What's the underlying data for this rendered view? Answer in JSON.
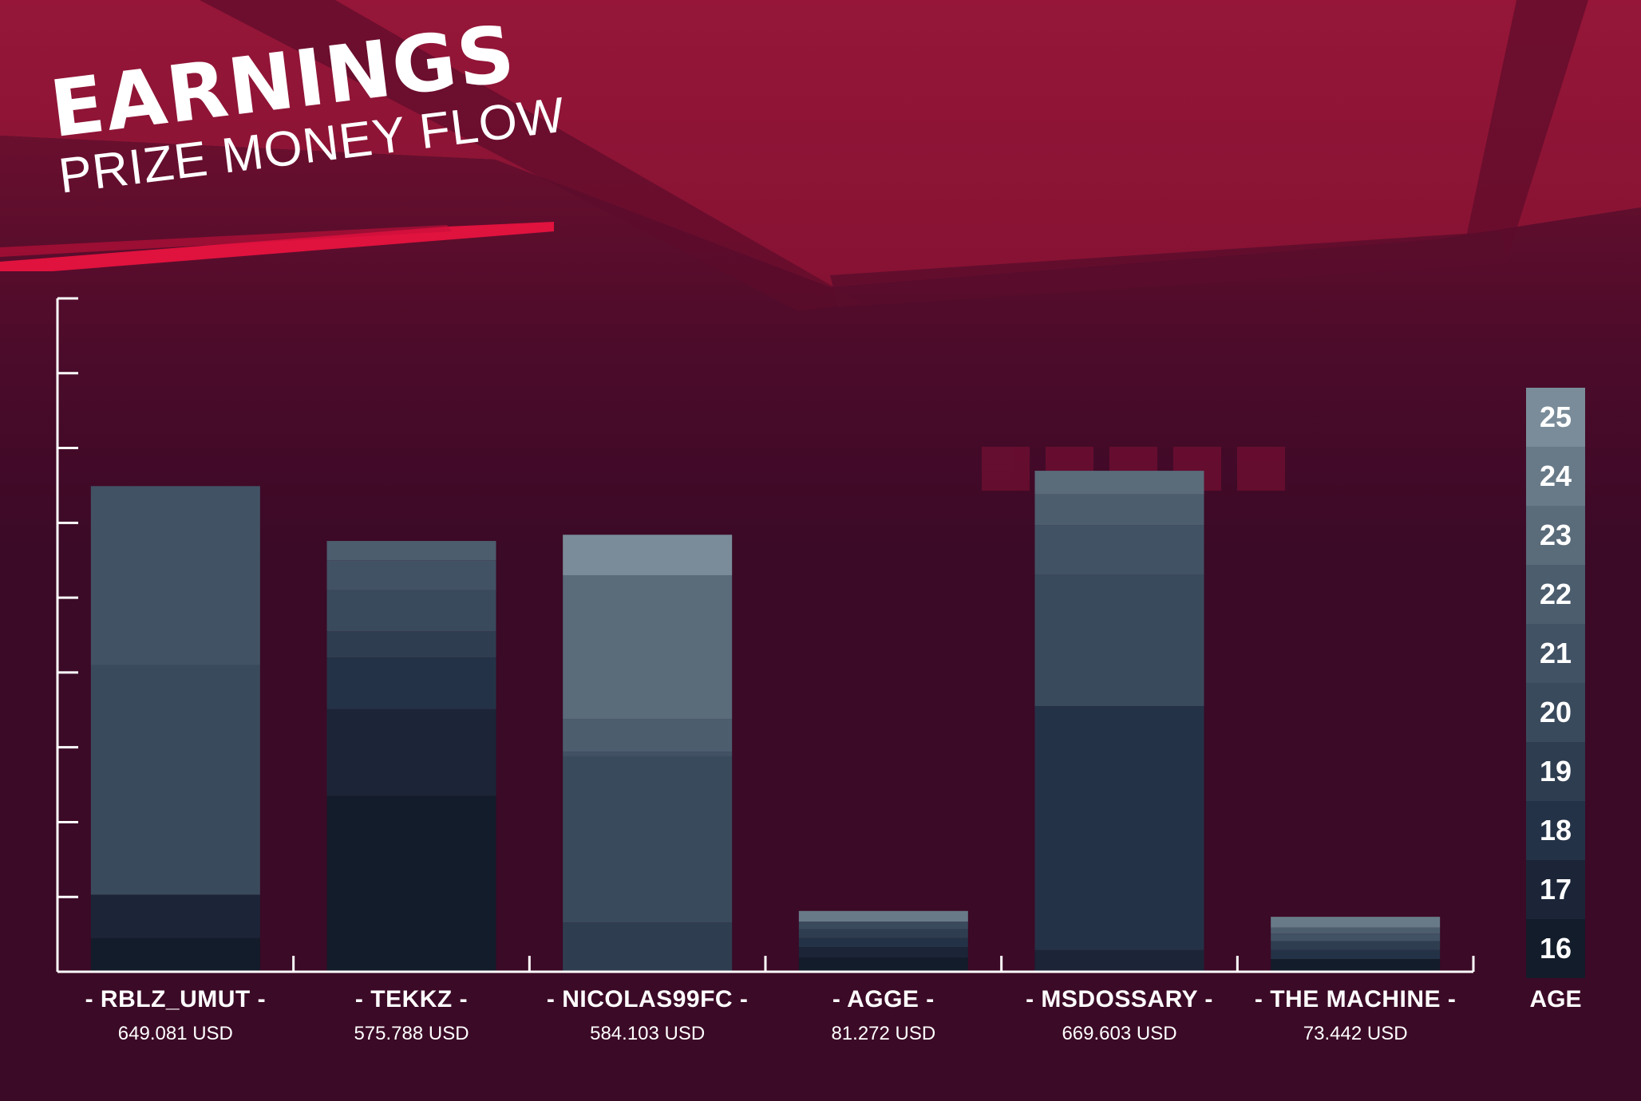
{
  "header": {
    "title": "EARNINGS",
    "subtitle": "PRIZE MONEY FLOW"
  },
  "colors": {
    "background": "#3b0a26",
    "stadium_red": "#8e1236",
    "accent_stripe": "#e0123e",
    "axis": "#ffffff"
  },
  "age_scale": {
    "label": "AGE",
    "values": [
      25,
      24,
      23,
      22,
      21,
      20,
      19,
      18,
      17,
      16
    ],
    "colors": [
      "#7a8c99",
      "#687a88",
      "#5a6b7a",
      "#4c5d6e",
      "#425265",
      "#3a4a5d",
      "#2f3d50",
      "#243247",
      "#1b2537",
      "#131c2a"
    ]
  },
  "chart_data": {
    "type": "bar",
    "stacked": true,
    "title": "EARNINGS",
    "subtitle": "PRIZE MONEY FLOW",
    "categories": [
      "RBLZ_UMUT",
      "TEKKZ",
      "NICOLAS99FC",
      "AGGE",
      "MSDOSSARY",
      "THE MACHINE"
    ],
    "display_names": [
      "- RBLZ_UMUT -",
      "- TEKKZ -",
      "- NICOLAS99FC -",
      "- AGGE -",
      "- MSDOSSARY -",
      "- THE MACHINE -"
    ],
    "amount_labels": [
      "649.081 USD",
      "575.788 USD",
      "584.103 USD",
      "81.272 USD",
      "669.603 USD",
      "73.442 USD"
    ],
    "totals": [
      649081,
      575788,
      584103,
      81272,
      669603,
      73442
    ],
    "ylim": [
      0,
      900000
    ],
    "y_ticks": [
      100000,
      200000,
      300000,
      400000,
      500000,
      600000,
      700000,
      800000,
      900000
    ],
    "y_tick_labels_shown": false,
    "segments_by_age": [
      [
        {
          "age": 16,
          "value": 45000
        },
        {
          "age": 17,
          "value": 58000
        },
        {
          "age": 20,
          "value": 307000
        },
        {
          "age": 21,
          "value": 239081
        }
      ],
      [
        {
          "age": 16,
          "value": 235000
        },
        {
          "age": 17,
          "value": 116000
        },
        {
          "age": 18,
          "value": 69000
        },
        {
          "age": 19,
          "value": 35000
        },
        {
          "age": 20,
          "value": 55000
        },
        {
          "age": 21,
          "value": 40000
        },
        {
          "age": 22,
          "value": 25788
        }
      ],
      [
        {
          "age": 19,
          "value": 66000
        },
        {
          "age": 20,
          "value": 222000
        },
        {
          "age": 21,
          "value": 6000
        },
        {
          "age": 22,
          "value": 44000
        },
        {
          "age": 23,
          "value": 192000
        },
        {
          "age": 25,
          "value": 54103
        }
      ],
      [
        {
          "age": 16,
          "value": 19000
        },
        {
          "age": 17,
          "value": 14000
        },
        {
          "age": 18,
          "value": 12000
        },
        {
          "age": 19,
          "value": 12000
        },
        {
          "age": 20,
          "value": 10000
        },
        {
          "age": 24,
          "value": 14272
        }
      ],
      [
        {
          "age": 17,
          "value": 29000
        },
        {
          "age": 18,
          "value": 326000
        },
        {
          "age": 20,
          "value": 176000
        },
        {
          "age": 21,
          "value": 66000
        },
        {
          "age": 22,
          "value": 41000
        },
        {
          "age": 23,
          "value": 31603
        }
      ],
      [
        {
          "age": 16,
          "value": 17000
        },
        {
          "age": 18,
          "value": 12000
        },
        {
          "age": 19,
          "value": 12000
        },
        {
          "age": 21,
          "value": 10000
        },
        {
          "age": 22,
          "value": 8000
        },
        {
          "age": 24,
          "value": 14442
        }
      ]
    ],
    "legend": "age color scale, right side",
    "grid": false
  }
}
